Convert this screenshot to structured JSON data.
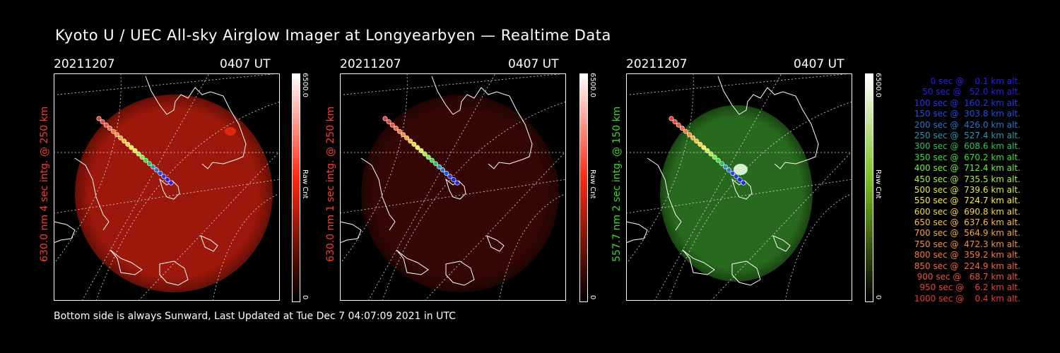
{
  "title": "Kyoto U / UEC All-sky Airglow Imager at Longyearbyen — Realtime Data",
  "footer": "Bottom side is always Sunward, Last Updated at Tue Dec  7 04:07:09 2021 in UTC",
  "panels": [
    {
      "date": "20211207",
      "time": "0407 UT",
      "side_label": "630.0 nm 4 sec intg. @ 250 km",
      "side_color": "#ff3b2f",
      "cbar_max": "6500.0",
      "cbar_min": "0",
      "cbar_label": "Raw Cnt",
      "image_color": "#b81c0c",
      "image_opacity": "0.85",
      "cbar_color": "#ff2a10"
    },
    {
      "date": "20211207",
      "time": "0407 UT",
      "side_label": "630.0 nm 1 sec intg. @ 250 km",
      "side_color": "#ff3b2f",
      "cbar_max": "6500.0",
      "cbar_min": "0",
      "cbar_label": "Raw Cnt",
      "image_color": "#3a0804",
      "image_opacity": "0.9",
      "cbar_color": "#ff2a10"
    },
    {
      "date": "20211207",
      "time": "0407 UT",
      "side_label": "557.7 nm 2 sec intg. @ 150 km",
      "side_color": "#3ddc2a",
      "cbar_max": "6500.0",
      "cbar_min": "0",
      "cbar_label": "Raw Cnt",
      "image_color": "#2f7d22",
      "image_opacity": "0.85",
      "cbar_color": "#7ac41e"
    }
  ],
  "legend": [
    {
      "text": "   0 sec @    0.1 km alt.",
      "color": "#2020ff"
    },
    {
      "text": "  50 sec @   52.0 km alt.",
      "color": "#2222ee"
    },
    {
      "text": " 100 sec @  160.2 km alt.",
      "color": "#2238e6"
    },
    {
      "text": " 150 sec @  303.8 km alt.",
      "color": "#2250de"
    },
    {
      "text": " 200 sec @  426.0 km alt.",
      "color": "#2a74d4"
    },
    {
      "text": " 250 sec @  527.4 km alt.",
      "color": "#2b9ab0"
    },
    {
      "text": " 300 sec @  608.6 km alt.",
      "color": "#2fc060"
    },
    {
      "text": " 350 sec @  670.2 km alt.",
      "color": "#3ae03a"
    },
    {
      "text": " 400 sec @  712.4 km alt.",
      "color": "#70f040"
    },
    {
      "text": " 450 sec @  735.5 km alt.",
      "color": "#a8f040"
    },
    {
      "text": " 500 sec @  739.6 km alt.",
      "color": "#d8f040"
    },
    {
      "text": " 550 sec @  724.7 km alt.",
      "color": "#f4f03c"
    },
    {
      "text": " 600 sec @  690.8 km alt.",
      "color": "#f6d83a"
    },
    {
      "text": " 650 sec @  637.6 km alt.",
      "color": "#f6c03a"
    },
    {
      "text": " 700 sec @  564.9 km alt.",
      "color": "#f6a83a"
    },
    {
      "text": " 750 sec @  472.3 km alt.",
      "color": "#f6923a"
    },
    {
      "text": " 800 sec @  359.2 km alt.",
      "color": "#f67a3a"
    },
    {
      "text": " 850 sec @  224.9 km alt.",
      "color": "#f6663a"
    },
    {
      "text": " 900 sec @   68.7 km alt.",
      "color": "#f2503a"
    },
    {
      "text": " 950 sec @    6.2 km alt.",
      "color": "#ee4038"
    },
    {
      "text": "1000 sec @    0.4 km alt.",
      "color": "#ea3a36"
    }
  ]
}
